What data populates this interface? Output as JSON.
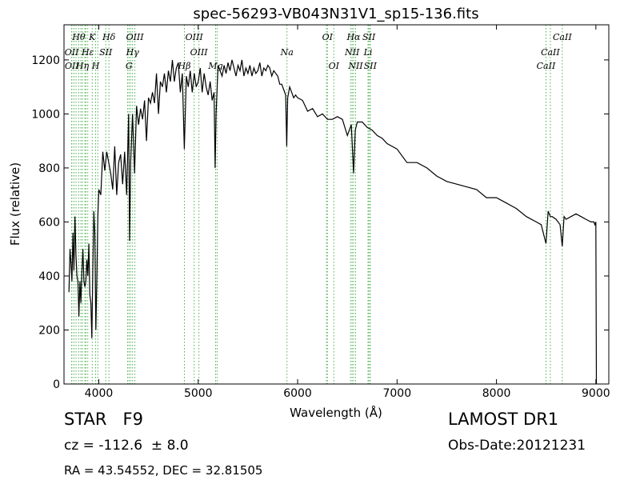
{
  "chart_data": {
    "type": "line",
    "title": "spec-56293-VB043N31V1_sp15-136.fits",
    "xlabel": "Wavelength (Å)",
    "ylabel": "Flux (relative)",
    "xlim": [
      3650,
      9130
    ],
    "ylim": [
      0,
      1330
    ],
    "xticks": [
      4000,
      5000,
      6000,
      7000,
      8000,
      9000
    ],
    "yticks": [
      0,
      200,
      400,
      600,
      800,
      1000,
      1200
    ],
    "grid": false,
    "line_color": "#000000",
    "marker_color": "#4caf50",
    "spectrum": {
      "x": [
        3700,
        3710,
        3720,
        3730,
        3740,
        3750,
        3760,
        3770,
        3780,
        3790,
        3800,
        3810,
        3820,
        3830,
        3840,
        3850,
        3860,
        3870,
        3880,
        3890,
        3900,
        3910,
        3920,
        3930,
        3940,
        3950,
        3960,
        3970,
        3980,
        3990,
        4000,
        4020,
        4040,
        4060,
        4080,
        4100,
        4120,
        4140,
        4160,
        4180,
        4200,
        4220,
        4240,
        4260,
        4280,
        4300,
        4310,
        4320,
        4340,
        4360,
        4380,
        4400,
        4420,
        4440,
        4460,
        4480,
        4500,
        4520,
        4540,
        4560,
        4580,
        4600,
        4620,
        4640,
        4660,
        4680,
        4700,
        4720,
        4740,
        4760,
        4780,
        4800,
        4820,
        4840,
        4860,
        4880,
        4900,
        4920,
        4940,
        4960,
        4980,
        5000,
        5020,
        5040,
        5060,
        5080,
        5100,
        5120,
        5140,
        5160,
        5170,
        5180,
        5200,
        5220,
        5240,
        5260,
        5280,
        5300,
        5320,
        5340,
        5360,
        5380,
        5400,
        5420,
        5440,
        5460,
        5480,
        5500,
        5520,
        5540,
        5560,
        5580,
        5600,
        5620,
        5640,
        5660,
        5680,
        5700,
        5720,
        5740,
        5760,
        5780,
        5800,
        5820,
        5840,
        5860,
        5880,
        5890,
        5900,
        5920,
        5940,
        5960,
        5980,
        6000,
        6050,
        6100,
        6150,
        6200,
        6250,
        6300,
        6350,
        6400,
        6450,
        6500,
        6540,
        6563,
        6580,
        6600,
        6650,
        6700,
        6750,
        6800,
        6850,
        6900,
        6950,
        7000,
        7100,
        7200,
        7300,
        7400,
        7500,
        7600,
        7700,
        7800,
        7900,
        8000,
        8100,
        8200,
        8300,
        8400,
        8450,
        8498,
        8520,
        8542,
        8560,
        8600,
        8640,
        8662,
        8680,
        8700,
        8750,
        8800,
        8850,
        8900,
        8950,
        8980,
        8990,
        9000,
        9005
      ],
      "y": [
        340,
        500,
        450,
        380,
        560,
        420,
        620,
        480,
        400,
        380,
        250,
        380,
        300,
        420,
        500,
        380,
        360,
        380,
        460,
        400,
        520,
        330,
        300,
        170,
        420,
        640,
        560,
        200,
        380,
        620,
        720,
        700,
        860,
        790,
        860,
        820,
        780,
        720,
        880,
        700,
        820,
        850,
        740,
        860,
        700,
        1000,
        530,
        820,
        1000,
        780,
        1030,
        960,
        1020,
        980,
        1050,
        900,
        1060,
        1040,
        1080,
        1040,
        1150,
        1000,
        1120,
        1100,
        1150,
        1080,
        1160,
        1120,
        1200,
        1120,
        1170,
        1190,
        1080,
        1150,
        870,
        1140,
        1100,
        1160,
        1080,
        1150,
        1100,
        1120,
        1170,
        1080,
        1150,
        1100,
        1070,
        1120,
        1050,
        1080,
        800,
        1000,
        1180,
        1160,
        1140,
        1180,
        1150,
        1190,
        1160,
        1200,
        1170,
        1140,
        1180,
        1160,
        1200,
        1140,
        1170,
        1150,
        1180,
        1140,
        1170,
        1150,
        1160,
        1190,
        1140,
        1170,
        1160,
        1180,
        1170,
        1140,
        1160,
        1150,
        1140,
        1110,
        1110,
        1090,
        1070,
        880,
        1060,
        1100,
        1080,
        1060,
        1070,
        1060,
        1050,
        1010,
        1020,
        990,
        1000,
        980,
        980,
        990,
        980,
        920,
        960,
        780,
        940,
        970,
        970,
        950,
        940,
        920,
        910,
        890,
        880,
        870,
        820,
        820,
        800,
        770,
        750,
        740,
        730,
        720,
        690,
        690,
        670,
        650,
        620,
        600,
        590,
        520,
        640,
        620,
        620,
        610,
        590,
        510,
        620,
        610,
        620,
        630,
        620,
        610,
        600,
        600,
        590,
        600,
        0
      ]
    },
    "lines_top": [
      {
        "label": "Hθ",
        "x": 3798,
        "row": 0
      },
      {
        "label": "K",
        "x": 3934,
        "row": 0
      },
      {
        "label": "Hδ",
        "x": 4102,
        "row": 0
      },
      {
        "label": "OIII",
        "x": 4363,
        "row": 0
      },
      {
        "label": "OIII",
        "x": 4959,
        "row": 0
      },
      {
        "label": "OI",
        "x": 6300,
        "row": 0
      },
      {
        "label": "Hα",
        "x": 6563,
        "row": 0
      },
      {
        "label": "SII",
        "x": 6717,
        "row": 0
      },
      {
        "label": "CaII",
        "x": 8662,
        "row": 0
      },
      {
        "label": "OII",
        "x": 3727,
        "row": 1
      },
      {
        "label": "Hε",
        "x": 3889,
        "row": 1
      },
      {
        "label": "SII",
        "x": 4070,
        "row": 1
      },
      {
        "label": "Hγ",
        "x": 4340,
        "row": 1
      },
      {
        "label": "OIII",
        "x": 5007,
        "row": 1
      },
      {
        "label": "Na",
        "x": 5893,
        "row": 1
      },
      {
        "label": "NII",
        "x": 6548,
        "row": 1
      },
      {
        "label": "Li",
        "x": 6708,
        "row": 1
      },
      {
        "label": "CaII",
        "x": 8542,
        "row": 1
      },
      {
        "label": "OII",
        "x": 3729,
        "row": 2
      },
      {
        "label": "Hη",
        "x": 3835,
        "row": 2
      },
      {
        "label": "H",
        "x": 3968,
        "row": 2
      },
      {
        "label": "G",
        "x": 4304,
        "row": 2
      },
      {
        "label": "Hβ",
        "x": 4861,
        "row": 2
      },
      {
        "label": "Mg",
        "x": 5175,
        "row": 2
      },
      {
        "label": "OI",
        "x": 6364,
        "row": 2
      },
      {
        "label": "NII",
        "x": 6583,
        "row": 2
      },
      {
        "label": "SII",
        "x": 6731,
        "row": 2
      },
      {
        "label": "CaII",
        "x": 8498,
        "row": 2
      }
    ],
    "extra_lines": [
      3750,
      3771,
      3820,
      3860,
      3870,
      3990,
      4290,
      4320,
      5190,
      6290,
      6533,
      6730
    ]
  },
  "info": {
    "class_text": "STAR   F9",
    "survey": "LAMOST DR1",
    "redshift_text": "cz = -112.6  ± 8.0",
    "obs_date": "Obs-Date:20121231",
    "coords": "RA = 43.54552, DEC = 32.81505"
  }
}
